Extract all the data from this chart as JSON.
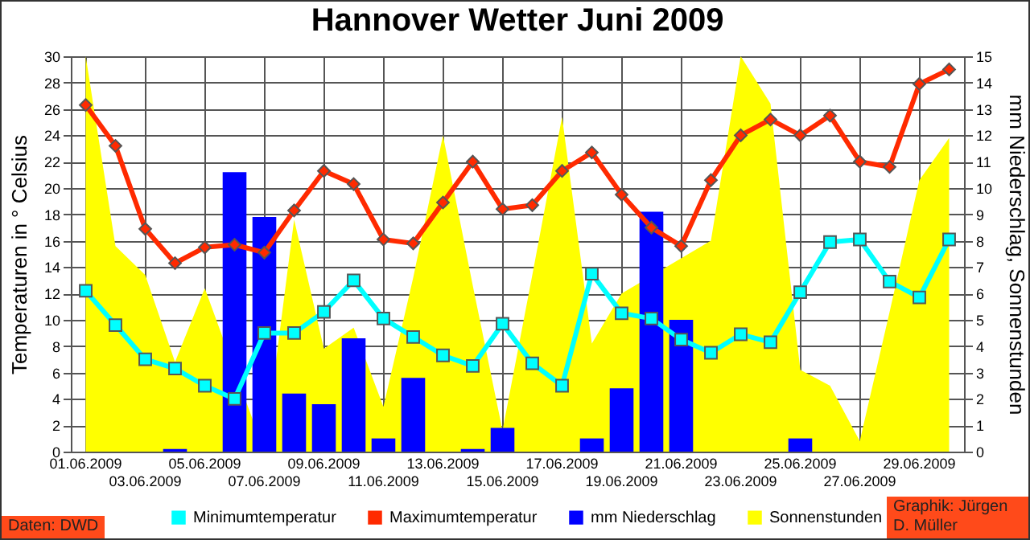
{
  "chart_data": {
    "type": "line",
    "title": "Hannover Wetter Juni 2009",
    "ylabel": "Temperaturen in ° Celsius",
    "y2label": "mm Niederschlag,  Sonnenstunden",
    "categories": [
      "01.06.2009",
      null,
      "03.06.2009",
      null,
      "05.06.2009",
      null,
      "07.06.2009",
      null,
      "09.06.2009",
      null,
      "11.06.2009",
      null,
      "13.06.2009",
      null,
      "15.06.2009",
      null,
      "17.06.2009",
      null,
      "19.06.2009",
      null,
      "21.06.2009",
      null,
      "23.06.2009",
      null,
      "25.06.2009",
      null,
      "27.06.2009",
      null,
      "29.06.2009",
      null
    ],
    "series": [
      {
        "name": "Minimumtemperatur",
        "marker": "square",
        "color": "#00ffff",
        "values": [
          12.2,
          9.6,
          7.0,
          6.3,
          5.0,
          4.0,
          9.0,
          9.0,
          10.6,
          13.0,
          10.1,
          8.7,
          7.3,
          6.5,
          9.7,
          6.7,
          5.0,
          13.5,
          10.5,
          10.1,
          8.5,
          7.5,
          8.9,
          8.3,
          12.1,
          15.9,
          16.1,
          12.9,
          11.7,
          16.1
        ]
      },
      {
        "name": "Maximumtemperatur",
        "marker": "diamond",
        "color": "#ff2a00",
        "values": [
          26.3,
          23.2,
          16.9,
          14.3,
          15.5,
          15.7,
          15.1,
          18.3,
          21.3,
          20.3,
          16.1,
          15.8,
          18.9,
          22.0,
          18.4,
          18.7,
          21.3,
          22.7,
          19.5,
          17.0,
          15.6,
          20.6,
          24.0,
          25.2,
          24.0,
          25.5,
          22.0,
          21.6,
          27.9,
          29.0
        ]
      },
      {
        "name": "mm Niederschlag",
        "type": "bar",
        "axis": "y2",
        "color": "#0000ff",
        "values": [
          0,
          0,
          0,
          0.1,
          0,
          10.6,
          8.9,
          2.2,
          1.8,
          4.3,
          0.5,
          2.8,
          0,
          0.1,
          0.9,
          0,
          0,
          0.5,
          2.4,
          9.1,
          5.0,
          0,
          0,
          0,
          0.5,
          0,
          0,
          0,
          0,
          0
        ]
      },
      {
        "name": "Sonnenstunden",
        "type": "area",
        "axis": "y2",
        "color": "#ffff00",
        "values": [
          15.0,
          7.8,
          6.7,
          3.4,
          6.2,
          null,
          0.0,
          8.8,
          3.9,
          4.7,
          1.7,
          6.6,
          12.0,
          6.3,
          0.8,
          6.7,
          12.7,
          4.1,
          6.0,
          null,
          null,
          8.0,
          15.0,
          13.2,
          3.1,
          2.5,
          0.4,
          5.3,
          10.3,
          11.9
        ]
      }
    ],
    "ylim": [
      0,
      30
    ],
    "yticks": [
      0,
      2,
      4,
      6,
      8,
      10,
      12,
      14,
      16,
      18,
      20,
      22,
      24,
      26,
      28,
      30
    ],
    "y2lim": [
      0,
      15
    ],
    "y2ticks": [
      0,
      1,
      2,
      3,
      4,
      5,
      6,
      7,
      8,
      9,
      10,
      11,
      12,
      13,
      14,
      15
    ],
    "grid": true,
    "legend": "bottom",
    "annotations": [
      "Daten: DWD",
      "Graphik: Jürgen D. Müller"
    ]
  }
}
